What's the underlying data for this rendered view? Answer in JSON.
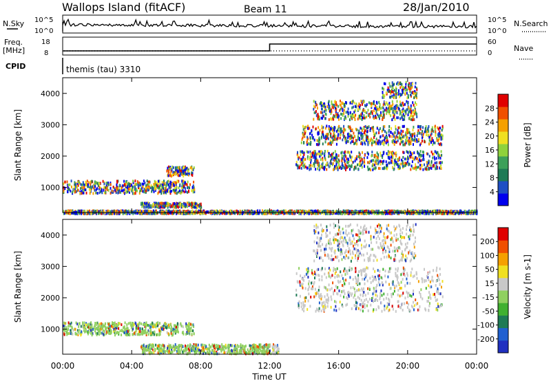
{
  "header": {
    "site": "Wallops Island (fitACF)",
    "beam": "Beam 11",
    "date": "28/Jan/2010"
  },
  "top_panels": {
    "nsky_label": "N.Sky",
    "nsky_ticks": [
      "10^5",
      "10^0"
    ],
    "nsearch_label": "N.Search",
    "nsearch_ticks": [
      "10^5",
      "10^0"
    ],
    "freq_label_1": "Freq.",
    "freq_label_2": "[MHz]",
    "freq_ticks": [
      "18",
      "8"
    ],
    "nave_label": "Nave",
    "nave_ticks": [
      "60",
      "0"
    ],
    "freq_step_time_ut": 12,
    "cpid_label": "CPID",
    "cpid_value": "themis (tau) 3310"
  },
  "chart_data": [
    {
      "type": "heatmap",
      "name": "power",
      "ylabel": "Slant Range [km]",
      "ylim": [
        200,
        4500
      ],
      "y_ticks": [
        "1000",
        "2000",
        "3000",
        "4000"
      ],
      "y_tick_values": [
        1000,
        2000,
        3000,
        4000
      ],
      "colorbar": {
        "label": "Power [dB]",
        "ticks": [
          "28",
          "24",
          "20",
          "16",
          "12",
          "8",
          "4"
        ],
        "colors": [
          "#0000ee",
          "#1f4fc4",
          "#1e7a55",
          "#3da05a",
          "#8fd23c",
          "#f0e020",
          "#f5a000",
          "#f05000",
          "#e00000"
        ]
      },
      "echo_regions": [
        {
          "t": [
            0.0,
            7.6
          ],
          "r": [
            850,
            1250
          ]
        },
        {
          "t": [
            6.0,
            7.6
          ],
          "r": [
            1400,
            1700
          ]
        },
        {
          "t": [
            4.5,
            8.0
          ],
          "r": [
            400,
            550
          ]
        },
        {
          "t": [
            0.0,
            24.0
          ],
          "r": [
            200,
            300
          ]
        },
        {
          "t": [
            13.5,
            22.0
          ],
          "r": [
            1600,
            2200
          ]
        },
        {
          "t": [
            13.8,
            22.0
          ],
          "r": [
            2400,
            3000
          ]
        },
        {
          "t": [
            14.5,
            20.5
          ],
          "r": [
            3200,
            3800
          ]
        },
        {
          "t": [
            18.5,
            20.5
          ],
          "r": [
            3900,
            4400
          ]
        }
      ]
    },
    {
      "type": "heatmap",
      "name": "velocity",
      "ylabel": "Slant Range [km]",
      "ylim": [
        200,
        4500
      ],
      "y_ticks": [
        "1000",
        "2000",
        "3000",
        "4000"
      ],
      "y_tick_values": [
        1000,
        2000,
        3000,
        4000
      ],
      "colorbar": {
        "label": "Velocity [m s-1]",
        "ticks": [
          "200",
          "100",
          "50",
          "15",
          "-15",
          "-50",
          "-100",
          "-200"
        ],
        "colors": [
          "#2030c0",
          "#2060d0",
          "#1e7a55",
          "#40b030",
          "#90d060",
          "#c8c8c8",
          "#f0e020",
          "#f5a000",
          "#f05000",
          "#e00000"
        ]
      },
      "echo_regions": [
        {
          "t": [
            0.0,
            7.6
          ],
          "r": [
            850,
            1250
          ]
        },
        {
          "t": [
            4.5,
            12.5
          ],
          "r": [
            250,
            550
          ]
        },
        {
          "t": [
            13.5,
            22.0
          ],
          "r": [
            1600,
            3000
          ]
        },
        {
          "t": [
            14.5,
            20.5
          ],
          "r": [
            3200,
            4400
          ]
        }
      ]
    }
  ],
  "xaxis": {
    "label": "Time UT",
    "ticks": [
      "00:00",
      "04:00",
      "08:00",
      "12:00",
      "16:00",
      "20:00",
      "00:00"
    ],
    "tick_values": [
      0,
      4,
      8,
      12,
      16,
      20,
      24
    ]
  }
}
